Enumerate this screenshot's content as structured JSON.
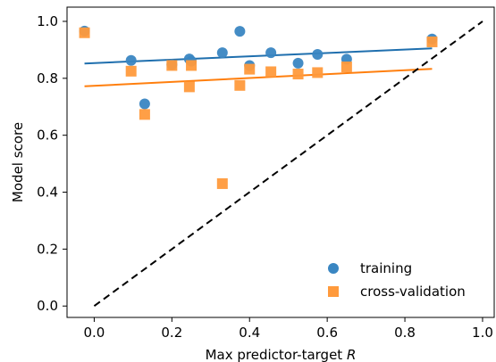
{
  "chart_data": {
    "type": "scatter",
    "title": "",
    "xlabel": "Max predictor-target",
    "xlabel_italic": "R",
    "ylabel": "Model score",
    "xlim": [
      -0.07,
      1.03
    ],
    "ylim": [
      -0.04,
      1.05
    ],
    "xticks": [
      0.0,
      0.2,
      0.4,
      0.6,
      0.8,
      1.0
    ],
    "xtick_labels": [
      "0.0",
      "0.2",
      "0.4",
      "0.6",
      "0.8",
      "1.0"
    ],
    "yticks": [
      0.0,
      0.2,
      0.4,
      0.6,
      0.8,
      1.0
    ],
    "ytick_labels": [
      "0.0",
      "0.2",
      "0.4",
      "0.6",
      "0.8",
      "1.0"
    ],
    "grid": false,
    "legend_position": "bottom-right",
    "series": [
      {
        "name": "training",
        "marker": "circle",
        "color": "#3a86c2",
        "x": [
          -0.025,
          0.095,
          0.13,
          0.2,
          0.245,
          0.25,
          0.33,
          0.375,
          0.4,
          0.455,
          0.525,
          0.575,
          0.65,
          0.87
        ],
        "y": [
          0.966,
          0.863,
          0.71,
          0.848,
          0.868,
          0.86,
          0.89,
          0.965,
          0.845,
          0.89,
          0.853,
          0.884,
          0.867,
          0.938
        ],
        "fit": {
          "x": [
            -0.025,
            0.87
          ],
          "y": [
            0.852,
            0.905
          ],
          "color": "#1f6fae"
        }
      },
      {
        "name": "cross-validation",
        "marker": "square",
        "color": "#ff9a3c",
        "x": [
          -0.025,
          0.095,
          0.13,
          0.2,
          0.245,
          0.25,
          0.33,
          0.375,
          0.4,
          0.455,
          0.525,
          0.575,
          0.65,
          0.87
        ],
        "y": [
          0.96,
          0.825,
          0.673,
          0.845,
          0.77,
          0.845,
          0.43,
          0.775,
          0.832,
          0.823,
          0.815,
          0.82,
          0.84,
          0.928
        ],
        "fit": {
          "x": [
            -0.025,
            0.87
          ],
          "y": [
            0.772,
            0.833
          ],
          "color": "#ff7f0e"
        }
      }
    ],
    "reference_line": {
      "x": [
        0.0,
        1.0
      ],
      "y": [
        0.0,
        1.0
      ],
      "color": "#000000",
      "style": "dashed"
    }
  }
}
